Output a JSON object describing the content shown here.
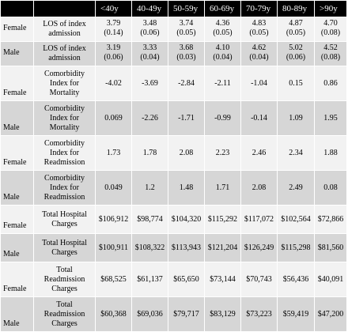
{
  "columns": [
    "",
    "",
    "<40y",
    "40-49y",
    "50-59y",
    "60-69y",
    "70-79y",
    "80-89y",
    ">90y"
  ],
  "rows": [
    {
      "sex": "Female",
      "metric": "LOS of index admission",
      "values": [
        [
          "3.79",
          "(0.14)"
        ],
        [
          "3.48",
          "(0.06)"
        ],
        [
          "3.74",
          "(0.05)"
        ],
        [
          "4.36",
          "(0.05)"
        ],
        [
          "4.83",
          "(0.05)"
        ],
        [
          "4.87",
          "(0.05)"
        ],
        [
          "4.70",
          "(0.08)"
        ]
      ]
    },
    {
      "sex": "Male",
      "metric": "LOS of index admission",
      "values": [
        [
          "3.19",
          "(0.06)"
        ],
        [
          "3.33",
          "(0.04)"
        ],
        [
          "3.68",
          "(0.03)"
        ],
        [
          "4.10",
          "(0.04)"
        ],
        [
          "4.62",
          "(0.04)"
        ],
        [
          "5.02",
          "(0.06)"
        ],
        [
          "4.52",
          "(0.08)"
        ]
      ]
    },
    {
      "sex": "Female",
      "metric": "Comorbidity Index for Mortality",
      "values": [
        "-4.02",
        "-3.69",
        "-2.84",
        "-2.11",
        "-1.04",
        "0.15",
        "0.86"
      ]
    },
    {
      "sex": "Male",
      "metric": "Comorbidity Index for Mortality",
      "values": [
        "0.069",
        "-2.26",
        "-1.71",
        "-0.99",
        "-0.14",
        "1.09",
        "1.95"
      ]
    },
    {
      "sex": "Female",
      "metric": "Comorbidity Index for Readmission",
      "values": [
        "1.73",
        "1.78",
        "2.08",
        "2.23",
        "2.46",
        "2.34",
        "1.88"
      ]
    },
    {
      "sex": "Male",
      "metric": "Comorbidity Index for Readmission",
      "values": [
        "0.049",
        "1.2",
        "1.48",
        "1.71",
        "2.08",
        "2.49",
        "0.08"
      ]
    },
    {
      "sex": "Female",
      "metric": "Total Hospital Charges",
      "values": [
        "$106,912",
        "$98,774",
        "$104,320",
        "$115,292",
        "$117,072",
        "$102,564",
        "$72,866"
      ]
    },
    {
      "sex": "Male",
      "metric": "Total Hospital Charges",
      "values": [
        "$100,911",
        "$108,322",
        "$113,943",
        "$121,204",
        "$126,249",
        "$115,298",
        "$81,560"
      ]
    },
    {
      "sex": "Female",
      "metric": "Total Readmission Charges",
      "values": [
        "$68,525",
        "$61,137",
        "$65,650",
        "$73,144",
        "$70,743",
        "$56,436",
        "$40,091"
      ]
    },
    {
      "sex": "Male",
      "metric": "Total Readmission Charges",
      "values": [
        "$60,368",
        "$69,036",
        "$79,717",
        "$83,129",
        "$73,223",
        "$59,419",
        "$47,200"
      ]
    }
  ]
}
